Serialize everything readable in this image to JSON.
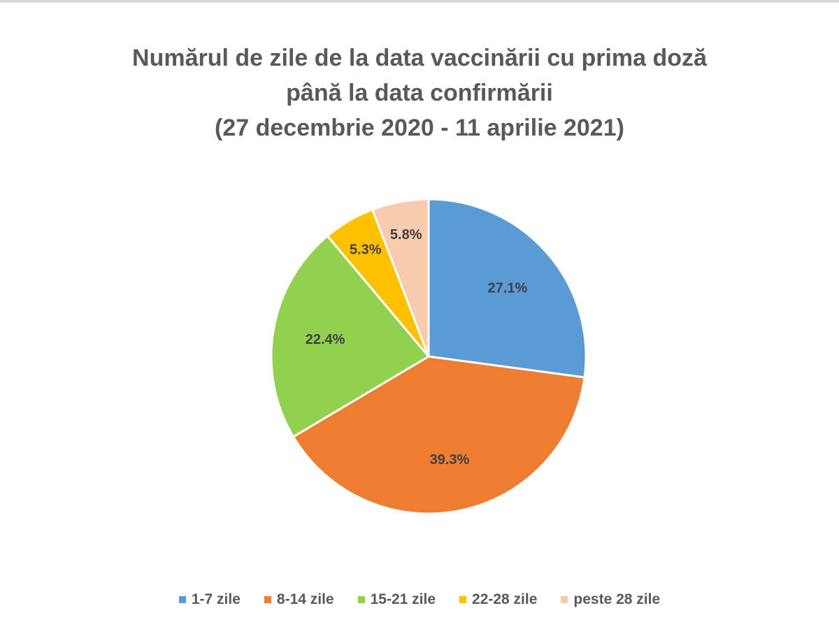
{
  "chart_data": {
    "type": "pie",
    "title_lines": [
      "Numărul de zile de la data vaccinării cu prima doză",
      "până la data confirmării",
      "(27 decembrie 2020 - 11 aprilie 2021)"
    ],
    "categories": [
      "1-7 zile",
      "8-14 zile",
      "15-21 zile",
      "22-28 zile",
      "peste 28 zile"
    ],
    "values": [
      27.1,
      39.3,
      22.4,
      5.3,
      5.8
    ],
    "labels": [
      "27.1%",
      "39.3%",
      "22.4%",
      "5.3%",
      "5.8%"
    ],
    "colors": [
      "#5b9bd5",
      "#ed7d31",
      "#92d050",
      "#ffc000",
      "#f8cbad"
    ],
    "legend_position": "bottom",
    "start_angle": "top, clockwise"
  }
}
